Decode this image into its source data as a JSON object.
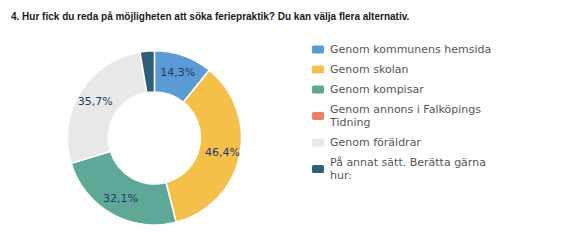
{
  "chart_data": {
    "type": "pie",
    "title": "4. Hur fick du reda på möjligheten att söka feriepraktik? Du kan välja flera alternativ.",
    "categories": [
      "Genom kommunens hemsida",
      "Genom skolan",
      "Genom kompisar",
      "Genom annons i Falköpings\nTidning",
      "Genom föräldrar",
      "På annat sätt. Berätta gärna\nhur:"
    ],
    "values": [
      14.3,
      46.4,
      32.1,
      0.01,
      35.7,
      3.5
    ],
    "value_labels": [
      "14,3%",
      "46,4%",
      "32,1%",
      null,
      "35,7%",
      null
    ],
    "colors": [
      "#5b9bd5",
      "#f5c04a",
      "#5fa898",
      "#e8806a",
      "#e8e8e8",
      "#2e5f7a"
    ],
    "data_labels": true,
    "legend": "right"
  }
}
